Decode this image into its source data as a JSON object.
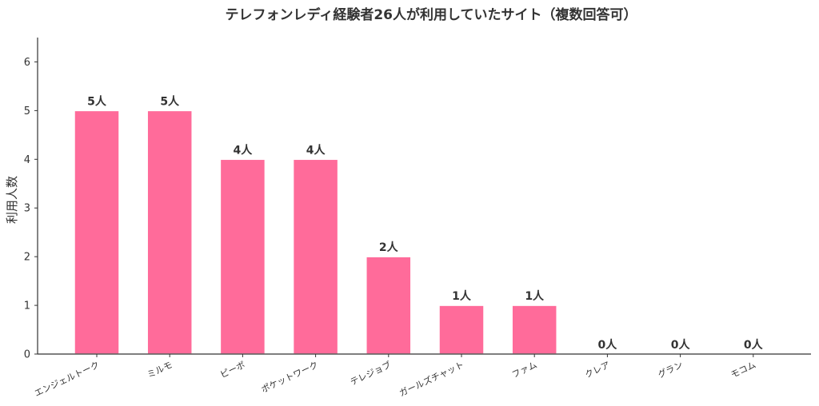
{
  "chart_data": {
    "type": "bar",
    "title": "テレフォンレディ経験者26人が利用していたサイト（複数回答可）",
    "xlabel": "",
    "ylabel": "利用人数",
    "categories": [
      "エンジェルトーク",
      "ミルモ",
      "ピーボ",
      "ポケットワーク",
      "テレジョブ",
      "ガールズチャット",
      "ファム",
      "クレア",
      "グラン",
      "モコム"
    ],
    "values": [
      5,
      5,
      4,
      4,
      2,
      1,
      1,
      0,
      0,
      0
    ],
    "data_labels": [
      "5人",
      "5人",
      "4人",
      "4人",
      "2人",
      "1人",
      "1人",
      "0人",
      "0人",
      "0人"
    ],
    "yticks": [
      0,
      1,
      2,
      3,
      4,
      5,
      6
    ],
    "ylim": [
      0,
      6.5
    ],
    "grid": false,
    "bar_color": "#ff6b9a"
  }
}
